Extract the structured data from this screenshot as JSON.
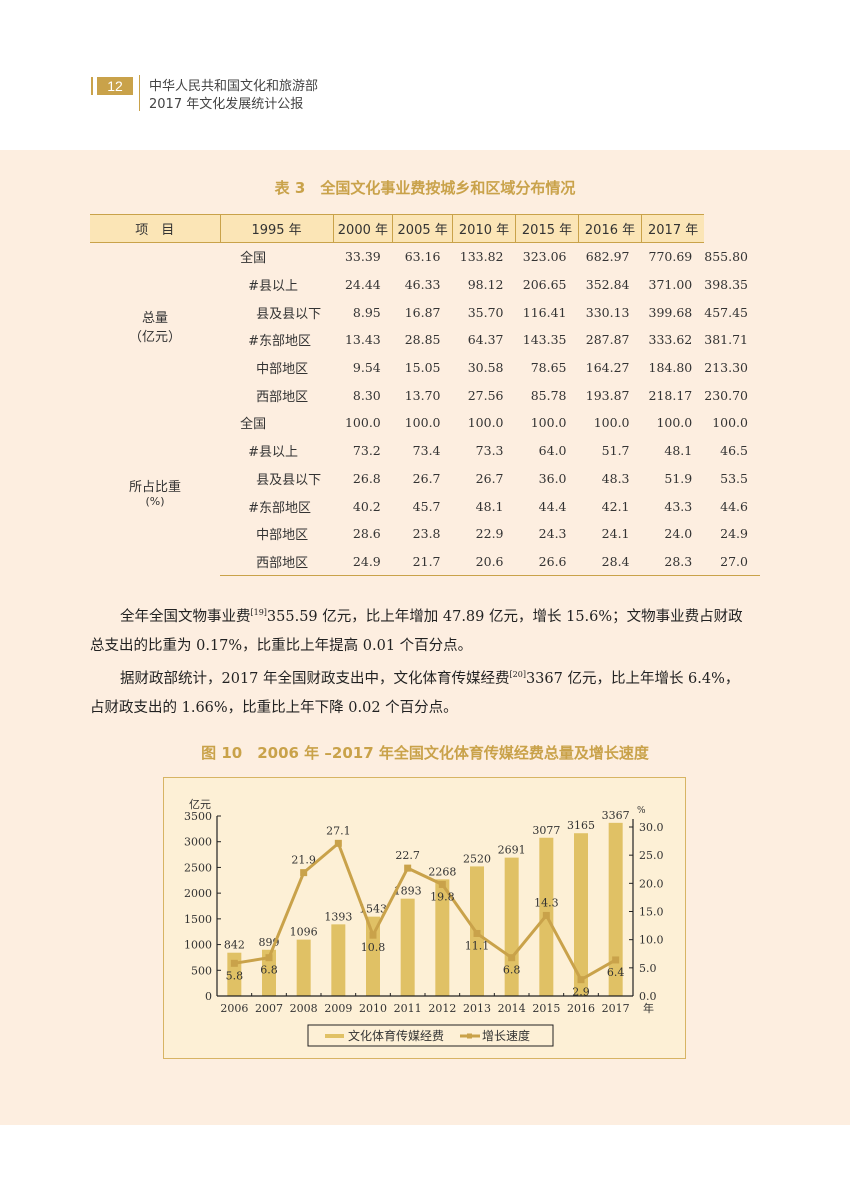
{
  "header": {
    "page_number": "12",
    "line1": "中华人民共和国文化和旅游部",
    "line2": "2017 年文化发展统计公报"
  },
  "table": {
    "title": "表 3　全国文化事业费按城乡和区域分布情况",
    "columns": [
      "项　目",
      "1995 年",
      "2000 年",
      "2005 年",
      "2010 年",
      "2015 年",
      "2016 年",
      "2017 年"
    ],
    "groups": [
      {
        "label_line1": "总量",
        "label_line2": "（亿元）",
        "rows": [
          {
            "item": "全国",
            "values": [
              "33.39",
              "63.16",
              "133.82",
              "323.06",
              "682.97",
              "770.69",
              "855.80"
            ]
          },
          {
            "item": "#县以上",
            "values": [
              "24.44",
              "46.33",
              "98.12",
              "206.65",
              "352.84",
              "371.00",
              "398.35"
            ]
          },
          {
            "item": "县及县以下",
            "values": [
              "8.95",
              "16.87",
              "35.70",
              "116.41",
              "330.13",
              "399.68",
              "457.45"
            ]
          },
          {
            "item": "#东部地区",
            "values": [
              "13.43",
              "28.85",
              "64.37",
              "143.35",
              "287.87",
              "333.62",
              "381.71"
            ]
          },
          {
            "item": "中部地区",
            "values": [
              "9.54",
              "15.05",
              "30.58",
              "78.65",
              "164.27",
              "184.80",
              "213.30"
            ]
          },
          {
            "item": "西部地区",
            "values": [
              "8.30",
              "13.70",
              "27.56",
              "85.78",
              "193.87",
              "218.17",
              "230.70"
            ]
          }
        ]
      },
      {
        "label_line1": "所占比重",
        "label_line2": "(%)",
        "rows": [
          {
            "item": "全国",
            "values": [
              "100.0",
              "100.0",
              "100.0",
              "100.0",
              "100.0",
              "100.0",
              "100.0"
            ]
          },
          {
            "item": "#县以上",
            "values": [
              "73.2",
              "73.4",
              "73.3",
              "64.0",
              "51.7",
              "48.1",
              "46.5"
            ]
          },
          {
            "item": "县及县以下",
            "values": [
              "26.8",
              "26.7",
              "26.7",
              "36.0",
              "48.3",
              "51.9",
              "53.5"
            ]
          },
          {
            "item": "#东部地区",
            "values": [
              "40.2",
              "45.7",
              "48.1",
              "44.4",
              "42.1",
              "43.3",
              "44.6"
            ]
          },
          {
            "item": "中部地区",
            "values": [
              "28.6",
              "23.8",
              "22.9",
              "24.3",
              "24.1",
              "24.0",
              "24.9"
            ]
          },
          {
            "item": "西部地区",
            "values": [
              "24.9",
              "21.7",
              "20.6",
              "26.6",
              "28.4",
              "28.3",
              "27.0"
            ]
          }
        ]
      }
    ]
  },
  "paragraphs": {
    "p1_a": "全年全国文物事业费",
    "p1_sup": "[19]",
    "p1_b": "355.59 亿元，比上年增加 47.89 亿元，增长 15.6%；文物事业费占财政",
    "p1_c": "总支出的比重为 0.17%，比重比上年提高 0.01 个百分点。",
    "p2_a": "据财政部统计，2017 年全国财政支出中，文化体育传媒经费",
    "p2_sup": "[20]",
    "p2_b": "3367 亿元，比上年增长 6.4%，",
    "p2_c": "占财政支出的 1.66%，比重比上年下降 0.02 个百分点。"
  },
  "figure": {
    "title": "图 10　2006 年 –2017 年全国文化体育传媒经费总量及增长速度"
  },
  "chart_data": {
    "type": "bar",
    "title": "图 10　2006 年 –2017 年全国文化体育传媒经费总量及增长速度",
    "categories": [
      "2006",
      "2007",
      "2008",
      "2009",
      "2010",
      "2011",
      "2012",
      "2013",
      "2014",
      "2015",
      "2016",
      "2017"
    ],
    "series": [
      {
        "name": "文化体育传媒经费",
        "type": "bar",
        "axis": "left",
        "color": "#e0c165",
        "values": [
          842,
          899,
          1096,
          1393,
          1543,
          1893,
          2268,
          2520,
          2691,
          3077,
          3165,
          3367
        ]
      },
      {
        "name": "增长速度",
        "type": "line",
        "axis": "right",
        "color": "#c9a24a",
        "values": [
          5.8,
          6.8,
          21.9,
          27.1,
          10.8,
          22.7,
          19.8,
          11.1,
          6.8,
          14.3,
          2.9,
          6.4
        ]
      }
    ],
    "xlabel": "年",
    "ylabel": "亿元",
    "ylabel_right": "%",
    "ylim": [
      0,
      3500
    ],
    "ylim_right": [
      0,
      30
    ],
    "yticks": [
      "0",
      "500",
      "1000",
      "1500",
      "2000",
      "2500",
      "3000",
      "3500"
    ],
    "yticks_right": [
      "0.0",
      "5.0",
      "10.0",
      "15.0",
      "20.0",
      "25.0",
      "30.0"
    ],
    "grid": false,
    "legend_position": "bottom",
    "legend": [
      "文化体育传媒经费",
      "增长速度"
    ]
  }
}
